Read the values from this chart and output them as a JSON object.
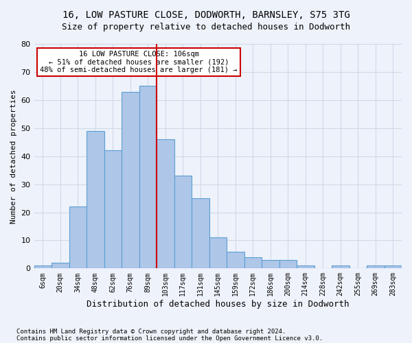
{
  "title1": "16, LOW PASTURE CLOSE, DODWORTH, BARNSLEY, S75 3TG",
  "title2": "Size of property relative to detached houses in Dodworth",
  "xlabel": "Distribution of detached houses by size in Dodworth",
  "ylabel": "Number of detached properties",
  "footnote1": "Contains HM Land Registry data © Crown copyright and database right 2024.",
  "footnote2": "Contains public sector information licensed under the Open Government Licence v3.0.",
  "bar_labels": [
    "6sqm",
    "20sqm",
    "34sqm",
    "48sqm",
    "62sqm",
    "76sqm",
    "89sqm",
    "103sqm",
    "117sqm",
    "131sqm",
    "145sqm",
    "159sqm",
    "172sqm",
    "186sqm",
    "200sqm",
    "214sqm",
    "228sqm",
    "242sqm",
    "255sqm",
    "269sqm",
    "283sqm"
  ],
  "bar_values": [
    1,
    2,
    22,
    49,
    42,
    63,
    65,
    46,
    33,
    25,
    11,
    6,
    4,
    3,
    3,
    1,
    0,
    1,
    0,
    1,
    1
  ],
  "bar_color": "#aec6e8",
  "bar_edge_color": "#5a9fd4",
  "grid_color": "#d0d8e8",
  "annotation_line1": "16 LOW PASTURE CLOSE: 106sqm",
  "annotation_line2": "← 51% of detached houses are smaller (192)",
  "annotation_line3": "48% of semi-detached houses are larger (181) →",
  "annotation_box_color": "#ffffff",
  "annotation_box_edge": "#cc0000",
  "vline_x": 6.5,
  "vline_color": "#cc0000",
  "background_color": "#eef2fa",
  "ylim": [
    0,
    80
  ],
  "yticks": [
    0,
    10,
    20,
    30,
    40,
    50,
    60,
    70,
    80
  ]
}
